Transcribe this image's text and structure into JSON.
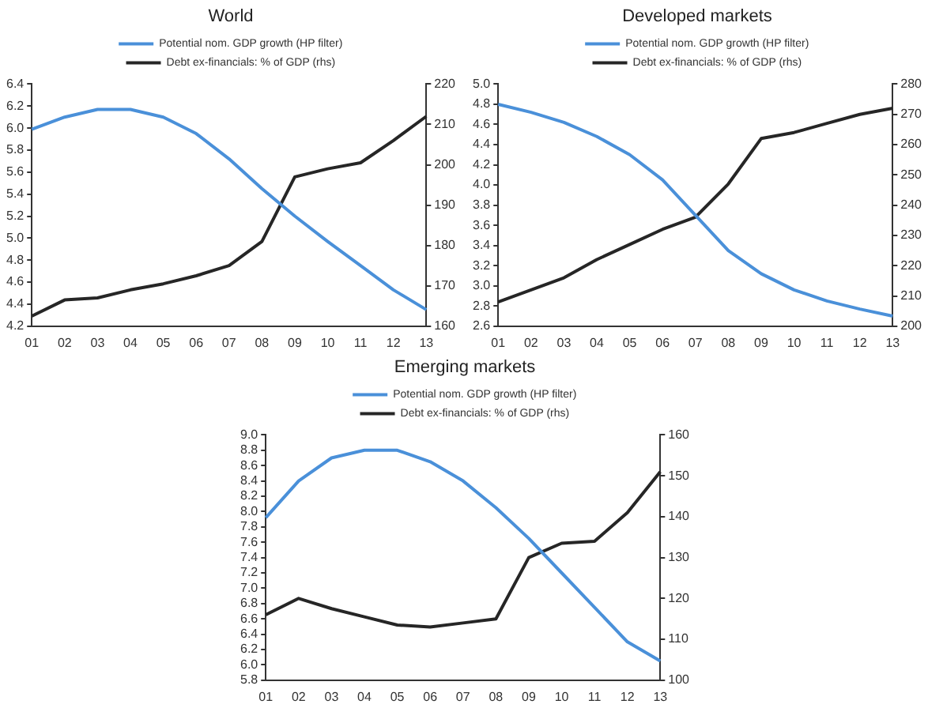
{
  "chart_data": [
    {
      "type": "line",
      "title": "World",
      "categories": [
        "01",
        "02",
        "03",
        "04",
        "05",
        "06",
        "07",
        "08",
        "09",
        "10",
        "11",
        "12",
        "13"
      ],
      "series": [
        {
          "name": "Potential nom. GDP growth (HP filter)",
          "color": "#4a90d9",
          "axis": "y",
          "values": [
            5.99,
            6.1,
            6.17,
            6.17,
            6.1,
            5.95,
            5.72,
            5.45,
            5.2,
            4.97,
            4.75,
            4.53,
            4.35
          ]
        },
        {
          "name": "Debt ex-financials: % of GDP (rhs)",
          "color": "#262626",
          "axis": "y2",
          "values": [
            162.5,
            166.5,
            167,
            169,
            170.5,
            172.5,
            175,
            181,
            197,
            199,
            200.5,
            206,
            212
          ]
        }
      ],
      "ylim": [
        4.2,
        6.4
      ],
      "yticks": [
        {
          "value": 4.2,
          "label": "4.2"
        },
        {
          "value": 4.4,
          "label": "4.4"
        },
        {
          "value": 4.6,
          "label": "4.6"
        },
        {
          "value": 4.8,
          "label": "4.8"
        },
        {
          "value": 5,
          "label": "5.0"
        },
        {
          "value": 5.2,
          "label": "5.2"
        },
        {
          "value": 5.4,
          "label": "5.4"
        },
        {
          "value": 5.6,
          "label": "5.6"
        },
        {
          "value": 5.8,
          "label": "5.8"
        },
        {
          "value": 6,
          "label": "6.0"
        },
        {
          "value": 6.2,
          "label": "6.2"
        },
        {
          "value": 6.4,
          "label": "6.4"
        }
      ],
      "y2lim": [
        160,
        220
      ],
      "y2ticks": [
        160,
        170,
        180,
        190,
        200,
        210,
        220
      ],
      "legend": "top",
      "grid": false,
      "marker": "none",
      "line_style": "solid"
    },
    {
      "type": "line",
      "title": "Developed markets",
      "categories": [
        "01",
        "02",
        "03",
        "04",
        "05",
        "06",
        "07",
        "08",
        "09",
        "10",
        "11",
        "12",
        "13"
      ],
      "series": [
        {
          "name": "Potential nom. GDP growth (HP filter)",
          "color": "#4a90d9",
          "axis": "y",
          "values": [
            4.8,
            4.72,
            4.62,
            4.48,
            4.3,
            4.05,
            3.7,
            3.35,
            3.12,
            2.96,
            2.85,
            2.77,
            2.7
          ]
        },
        {
          "name": "Debt ex-financials: % of GDP (rhs)",
          "color": "#262626",
          "axis": "y2",
          "values": [
            208,
            212,
            216,
            222,
            227,
            232,
            236,
            247,
            262,
            264,
            267,
            270,
            272
          ]
        }
      ],
      "ylim": [
        2.6,
        5
      ],
      "yticks": [
        {
          "value": 2.6,
          "label": "2.6"
        },
        {
          "value": 2.8,
          "label": "2.8"
        },
        {
          "value": 3,
          "label": "3.0"
        },
        {
          "value": 3.2,
          "label": "3.2"
        },
        {
          "value": 3.4,
          "label": "3.4"
        },
        {
          "value": 3.6,
          "label": "3.6"
        },
        {
          "value": 3.8,
          "label": "3.8"
        },
        {
          "value": 4,
          "label": "4.0"
        },
        {
          "value": 4.2,
          "label": "4.2"
        },
        {
          "value": 4.4,
          "label": "4.4"
        },
        {
          "value": 4.6,
          "label": "4.6"
        },
        {
          "value": 4.8,
          "label": "4.8"
        },
        {
          "value": 5,
          "label": "5.0"
        }
      ],
      "y2lim": [
        200,
        280
      ],
      "y2ticks": [
        200,
        210,
        220,
        230,
        240,
        250,
        260,
        270,
        280
      ],
      "legend": "top",
      "grid": false,
      "marker": "none",
      "line_style": "solid"
    },
    {
      "type": "line",
      "title": "Emerging markets",
      "categories": [
        "01",
        "02",
        "03",
        "04",
        "05",
        "06",
        "07",
        "08",
        "09",
        "10",
        "11",
        "12",
        "13"
      ],
      "series": [
        {
          "name": "Potential nom. GDP growth (HP filter)",
          "color": "#4a90d9",
          "axis": "y",
          "values": [
            7.92,
            8.4,
            8.7,
            8.8,
            8.8,
            8.65,
            8.4,
            8.05,
            7.65,
            7.2,
            6.75,
            6.3,
            6.05
          ]
        },
        {
          "name": "Debt ex-financials: % of GDP (rhs)",
          "color": "#262626",
          "axis": "y2",
          "values": [
            116,
            120,
            117.5,
            115.5,
            113.5,
            113,
            114,
            115,
            130,
            133.5,
            134,
            141,
            151
          ]
        }
      ],
      "ylim": [
        5.8,
        9
      ],
      "yticks": [
        {
          "value": 5.8,
          "label": "5.8"
        },
        {
          "value": 6,
          "label": "6.0"
        },
        {
          "value": 6.2,
          "label": "6.2"
        },
        {
          "value": 6.4,
          "label": "6.4"
        },
        {
          "value": 6.6,
          "label": "6.6"
        },
        {
          "value": 6.8,
          "label": "6.8"
        },
        {
          "value": 7,
          "label": "7.0"
        },
        {
          "value": 7.2,
          "label": "7.2"
        },
        {
          "value": 7.4,
          "label": "7.4"
        },
        {
          "value": 7.6,
          "label": "7.6"
        },
        {
          "value": 7.8,
          "label": "7.8"
        },
        {
          "value": 8,
          "label": "8.0"
        },
        {
          "value": 8.2,
          "label": "8.2"
        },
        {
          "value": 8.4,
          "label": "8.4"
        },
        {
          "value": 8.6,
          "label": "8.6"
        },
        {
          "value": 8.8,
          "label": "8.8"
        },
        {
          "value": 9,
          "label": "9.0"
        }
      ],
      "y2lim": [
        100,
        160
      ],
      "y2ticks": [
        100,
        110,
        120,
        130,
        140,
        150,
        160
      ],
      "legend": "top",
      "grid": false,
      "marker": "none",
      "line_style": "solid"
    }
  ]
}
